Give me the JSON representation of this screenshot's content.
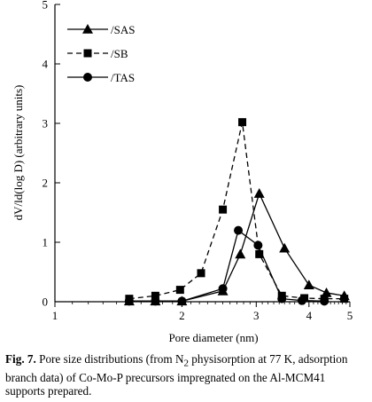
{
  "chart_data": {
    "type": "line",
    "xscale": "log",
    "xlabel": "Pore diameter (nm)",
    "ylabel": "dV/ld(log D) (arbitrary units)",
    "xlim": [
      1,
      5
    ],
    "ylim": [
      0,
      5
    ],
    "xticks": [
      1,
      2,
      3,
      4,
      5
    ],
    "yticks": [
      0,
      1,
      2,
      3,
      4,
      5
    ],
    "legend_position": "top-left",
    "grid": false,
    "series": [
      {
        "name": "/SAS",
        "marker": "triangle",
        "line": "solid",
        "x": [
          1.5,
          1.73,
          2.0,
          2.5,
          2.75,
          3.05,
          3.5,
          4.0,
          4.4,
          4.85
        ],
        "y": [
          0.01,
          0.01,
          0.01,
          0.18,
          0.8,
          1.82,
          0.9,
          0.28,
          0.15,
          0.1
        ]
      },
      {
        "name": "/SB",
        "marker": "square",
        "line": "dashed",
        "x": [
          1.5,
          1.73,
          1.98,
          2.22,
          2.5,
          2.78,
          3.05,
          3.45,
          3.9,
          4.35,
          4.85
        ],
        "y": [
          0.05,
          0.1,
          0.2,
          0.48,
          1.55,
          3.02,
          0.8,
          0.1,
          0.06,
          0.05,
          0.05
        ]
      },
      {
        "name": "/TAS",
        "marker": "circle",
        "line": "solid",
        "x": [
          1.5,
          1.73,
          2.0,
          2.5,
          2.72,
          3.03,
          3.45,
          3.85,
          4.35
        ],
        "y": [
          0.01,
          0.01,
          0.01,
          0.22,
          1.2,
          0.95,
          0.05,
          0.02,
          0.01
        ]
      }
    ]
  },
  "caption": {
    "fig_label": "Fig. 7.",
    "text_before_sub": " Pore size distributions (from N",
    "subscript": "2",
    "text_after_sub": " physisorption at 77 K, adsorption branch data) of Co-Mo-P precursors impregnated on the Al-MCM41 supports prepared."
  }
}
